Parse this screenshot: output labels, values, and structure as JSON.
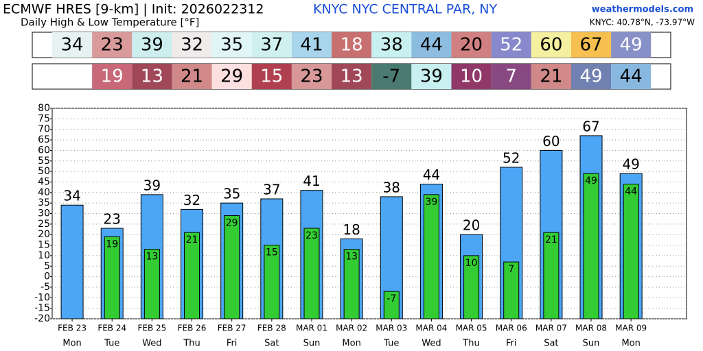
{
  "chart_data": {
    "type": "bar",
    "title": "ECMWF HRES [9-km] | Init: 2026022312",
    "subtitle": "Daily High & Low Temperature [°F]",
    "station": "KNYC NYC CENTRAL PAR, NY",
    "site": "weathermodels.com",
    "coords": "KNYC: 40.78°N, -73.97°W",
    "categories": [
      "FEB 23",
      "FEB 24",
      "FEB 25",
      "FEB 26",
      "FEB 27",
      "FEB 28",
      "MAR 01",
      "MAR 02",
      "MAR 03",
      "MAR 04",
      "MAR 05",
      "MAR 06",
      "MAR 07",
      "MAR 08",
      "MAR 09"
    ],
    "weekdays": [
      "Mon",
      "Tue",
      "Wed",
      "Thu",
      "Fri",
      "Sat",
      "Sun",
      "Mon",
      "Tue",
      "Wed",
      "Thu",
      "Fri",
      "Sat",
      "Sun",
      "Mon"
    ],
    "ylim": [
      -20,
      80
    ],
    "yticks": [
      -20,
      -15,
      -10,
      -5,
      0,
      5,
      10,
      15,
      20,
      25,
      30,
      35,
      40,
      45,
      50,
      55,
      60,
      65,
      70,
      75,
      80
    ],
    "grid": true,
    "series": [
      {
        "color": "#4da6f5",
        "values": [
          34,
          23,
          39,
          32,
          35,
          37,
          41,
          18,
          38,
          44,
          20,
          52,
          60,
          67,
          49
        ],
        "box_colors": [
          "#e6f2f2",
          "#d99a9a",
          "#cceeee",
          "#f0ebeb",
          "#e0f5f5",
          "#d0f0f0",
          "#a8d4ec",
          "#c87070",
          "#c8f0f0",
          "#8cbce0",
          "#d08080",
          "#8888cc",
          "#f5f0a0",
          "#f5c050",
          "#8890c8"
        ],
        "text_colors": [
          "#000",
          "#000",
          "#000",
          "#000",
          "#000",
          "#000",
          "#000",
          "#fff",
          "#000",
          "#000",
          "#000",
          "#fff",
          "#000",
          "#000",
          "#fff"
        ]
      },
      {
        "color": "#33cc33",
        "values": [
          null,
          19,
          13,
          21,
          29,
          15,
          23,
          13,
          -7,
          39,
          10,
          7,
          21,
          49,
          44
        ],
        "box_colors": [
          null,
          "#c86878",
          "#a04858",
          "#d08888",
          "#fce0e0",
          "#b04050",
          "#d89898",
          "#a04858",
          "#4a7a70",
          "#c8f0f0",
          "#903868",
          "#884880",
          "#d08888",
          "#7080b0",
          "#88b8e0"
        ],
        "text_colors": [
          null,
          "#fff",
          "#fff",
          "#000",
          "#000",
          "#fff",
          "#000",
          "#fff",
          "#000",
          "#000",
          "#fff",
          "#fff",
          "#000",
          "#fff",
          "#000"
        ]
      }
    ]
  }
}
